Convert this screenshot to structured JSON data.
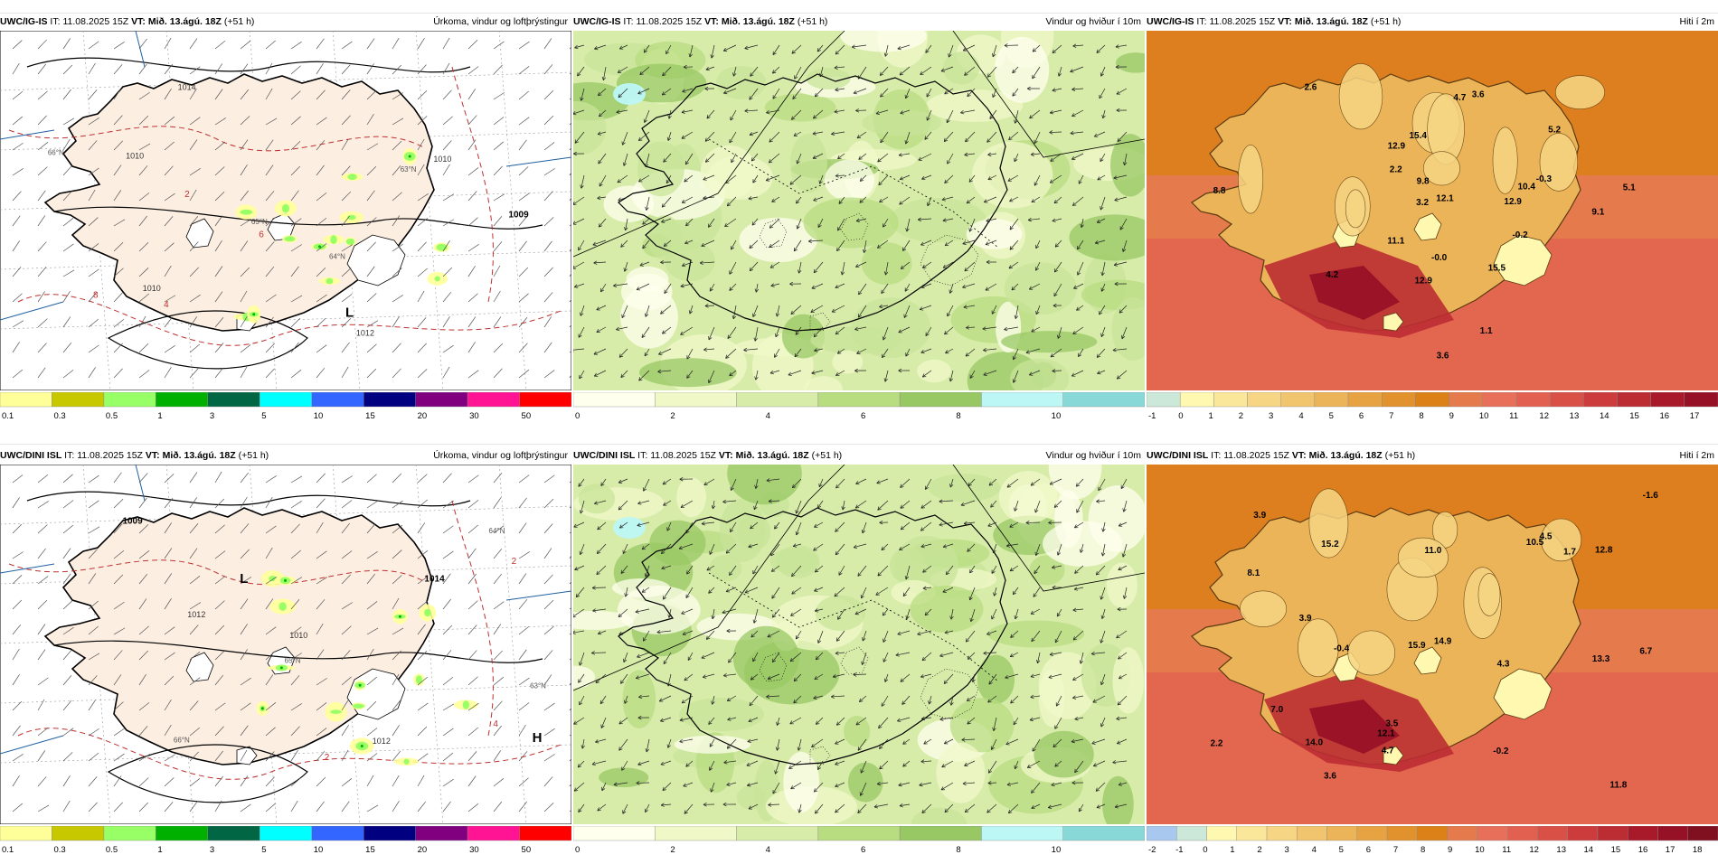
{
  "panels": [
    {
      "id": "r0c0",
      "model": "UWC/IG-IS",
      "it_label": "IT:",
      "it_value": "11.08.2025 15Z",
      "vt_label": "VT:",
      "vt_value": "Mið. 13.ágú. 18Z",
      "lead": "(+51 h)",
      "field": "Úrkoma, vindur og loftþrýstingur",
      "kind": "precip",
      "legend": {
        "colors": [
          "#ffff99",
          "#c8c800",
          "#99ff66",
          "#00b000",
          "#006644",
          "#00ffff",
          "#3366ff",
          "#000080",
          "#800080",
          "#ff1493",
          "#ff0000"
        ],
        "labels": [
          "0.1",
          "0.3",
          "0.5",
          "1",
          "3",
          "5",
          "10",
          "15",
          "20",
          "30",
          "50"
        ]
      },
      "annotations": [
        {
          "text": "1012",
          "type": "isobar"
        },
        {
          "text": "1014",
          "type": "isobar"
        },
        {
          "text": "1010",
          "type": "isobar"
        },
        {
          "text": "1010",
          "type": "isobar"
        },
        {
          "text": "1010",
          "type": "isobar"
        },
        {
          "text": "L",
          "type": "low"
        },
        {
          "text": "1009",
          "type": "low-value"
        },
        {
          "text": "2",
          "type": "isotherm"
        },
        {
          "text": "6",
          "type": "isotherm"
        },
        {
          "text": "4",
          "type": "isotherm"
        },
        {
          "text": "8",
          "type": "isotherm"
        },
        {
          "text": "66°N",
          "type": "grid"
        },
        {
          "text": "65°N",
          "type": "grid"
        },
        {
          "text": "64°N",
          "type": "grid"
        },
        {
          "text": "63°N",
          "type": "grid"
        }
      ]
    },
    {
      "id": "r0c1",
      "model": "UWC/IG-IS",
      "it_label": "IT:",
      "it_value": "11.08.2025 15Z",
      "vt_label": "VT:",
      "vt_value": "Mið. 13.ágú. 18Z",
      "lead": "(+51 h)",
      "field": "Vindur og hviður í 10m",
      "kind": "wind",
      "legend": {
        "colors": [
          "#ffffee",
          "#f0f8c8",
          "#d8ecaa",
          "#b8dc80",
          "#98c864",
          "#bdf7f5",
          "#88d8d8"
        ],
        "labels": [
          "0",
          "2",
          "4",
          "6",
          "8",
          "10"
        ]
      },
      "annotations": []
    },
    {
      "id": "r0c2",
      "model": "UWC/IG-IS",
      "it_label": "IT:",
      "it_value": "11.08.2025 15Z",
      "vt_label": "VT:",
      "vt_value": "Mið. 13.ágú. 18Z",
      "lead": "(+51 h)",
      "field": "Hiti í 2m",
      "kind": "temp",
      "legend": {
        "colors": [
          "#cce8d8",
          "#fff8b0",
          "#fbe79a",
          "#f6d684",
          "#f1c56e",
          "#ecb458",
          "#e7a342",
          "#e2922c",
          "#dc8018",
          "#e57a4c",
          "#e8705a",
          "#e26050",
          "#d85046",
          "#cc3c3c",
          "#bb2c33",
          "#a81a2a",
          "#961026"
        ],
        "labels": [
          "-1",
          "0",
          "1",
          "2",
          "3",
          "4",
          "5",
          "6",
          "7",
          "8",
          "9",
          "10",
          "11",
          "12",
          "13",
          "14",
          "15",
          "16",
          "17"
        ]
      },
      "annotations": [
        {
          "text": "9.1",
          "type": "value"
        },
        {
          "text": "1.1",
          "type": "value"
        },
        {
          "text": "12.1",
          "type": "value"
        },
        {
          "text": "4.2",
          "type": "value"
        },
        {
          "text": "5.1",
          "type": "value"
        },
        {
          "text": "3.2",
          "type": "value"
        },
        {
          "text": "5.2",
          "type": "value"
        },
        {
          "text": "12.9",
          "type": "value"
        },
        {
          "text": "2.2",
          "type": "value"
        },
        {
          "text": "10.4",
          "type": "value"
        },
        {
          "text": "4.7",
          "type": "value"
        },
        {
          "text": "12.9",
          "type": "value"
        },
        {
          "text": "11.1",
          "type": "value"
        },
        {
          "text": "3.6",
          "type": "value"
        },
        {
          "text": "3.6",
          "type": "value"
        },
        {
          "text": "2.6",
          "type": "value"
        },
        {
          "text": "-0.2",
          "type": "value"
        },
        {
          "text": "-0.0",
          "type": "value"
        },
        {
          "text": "15.4",
          "type": "value"
        },
        {
          "text": "12.9",
          "type": "value"
        },
        {
          "text": "-0.3",
          "type": "value"
        },
        {
          "text": "9.8",
          "type": "value"
        },
        {
          "text": "8.8",
          "type": "value"
        },
        {
          "text": "15.5",
          "type": "value"
        }
      ]
    },
    {
      "id": "r1c0",
      "model": "UWC/DINI ISL",
      "it_label": "IT:",
      "it_value": "11.08.2025 15Z",
      "vt_label": "VT:",
      "vt_value": "Mið. 13.ágú. 18Z",
      "lead": "(+51 h)",
      "field": "Úrkoma, vindur og loftþrýstingur",
      "kind": "precip",
      "legend": {
        "colors": [
          "#ffff99",
          "#c8c800",
          "#99ff66",
          "#00b000",
          "#006644",
          "#00ffff",
          "#3366ff",
          "#000080",
          "#800080",
          "#ff1493",
          "#ff0000"
        ],
        "labels": [
          "0.1",
          "0.3",
          "0.5",
          "1",
          "3",
          "5",
          "10",
          "15",
          "20",
          "30",
          "50"
        ]
      },
      "annotations": [
        {
          "text": "H",
          "type": "high"
        },
        {
          "text": "1014",
          "type": "high-value"
        },
        {
          "text": "1012",
          "type": "isobar"
        },
        {
          "text": "1012",
          "type": "isobar"
        },
        {
          "text": "1010",
          "type": "isobar"
        },
        {
          "text": "L",
          "type": "low"
        },
        {
          "text": "1009",
          "type": "low-value"
        },
        {
          "text": "2",
          "type": "isotherm"
        },
        {
          "text": "4",
          "type": "isotherm"
        },
        {
          "text": "2",
          "type": "isotherm"
        },
        {
          "text": "66°N",
          "type": "grid"
        },
        {
          "text": "65°N",
          "type": "grid"
        },
        {
          "text": "64°N",
          "type": "grid"
        },
        {
          "text": "63°N",
          "type": "grid"
        }
      ]
    },
    {
      "id": "r1c1",
      "model": "UWC/DINI ISL",
      "it_label": "IT:",
      "it_value": "11.08.2025 15Z",
      "vt_label": "VT:",
      "vt_value": "Mið. 13.ágú. 18Z",
      "lead": "(+51 h)",
      "field": "Vindur og hviður í 10m",
      "kind": "wind",
      "legend": {
        "colors": [
          "#ffffee",
          "#f0f8c8",
          "#d8ecaa",
          "#b8dc80",
          "#98c864",
          "#bdf7f5",
          "#88d8d8"
        ],
        "labels": [
          "0",
          "2",
          "4",
          "6",
          "8",
          "10"
        ]
      },
      "annotations": []
    },
    {
      "id": "r1c2",
      "model": "UWC/DINI ISL",
      "it_label": "IT:",
      "it_value": "11.08.2025 15Z",
      "vt_label": "VT:",
      "vt_value": "Mið. 13.ágú. 18Z",
      "lead": "(+51 h)",
      "field": "Hiti í 2m",
      "kind": "temp",
      "legend": {
        "colors": [
          "#a8c8f0",
          "#cce8d8",
          "#fff8b0",
          "#fbe79a",
          "#f6d684",
          "#f1c56e",
          "#ecb458",
          "#e7a342",
          "#e2922c",
          "#dc8018",
          "#e57a4c",
          "#e8705a",
          "#e26050",
          "#d85046",
          "#cc3c3c",
          "#bb2c33",
          "#a81a2a",
          "#961026",
          "#801020"
        ],
        "labels": [
          "-2",
          "-1",
          "0",
          "1",
          "2",
          "3",
          "4",
          "5",
          "6",
          "7",
          "8",
          "9",
          "10",
          "11",
          "12",
          "13",
          "14",
          "15",
          "16",
          "17",
          "18"
        ]
      },
      "annotations": [
        {
          "text": "3.9",
          "type": "value"
        },
        {
          "text": "3.9",
          "type": "value"
        },
        {
          "text": "6.7",
          "type": "value"
        },
        {
          "text": "12.1",
          "type": "value"
        },
        {
          "text": "4.3",
          "type": "value"
        },
        {
          "text": "3.6",
          "type": "value"
        },
        {
          "text": "2.2",
          "type": "value"
        },
        {
          "text": "4.5",
          "type": "value"
        },
        {
          "text": "13.3",
          "type": "value"
        },
        {
          "text": "4.7",
          "type": "value"
        },
        {
          "text": "10.5",
          "type": "value"
        },
        {
          "text": "7.0",
          "type": "value"
        },
        {
          "text": "12.8",
          "type": "value"
        },
        {
          "text": "11.8",
          "type": "value"
        },
        {
          "text": "3.5",
          "type": "value"
        },
        {
          "text": "1.7",
          "type": "value"
        },
        {
          "text": "-0.2",
          "type": "value"
        },
        {
          "text": "-1.6",
          "type": "value"
        },
        {
          "text": "11.0",
          "type": "value"
        },
        {
          "text": "15.2",
          "type": "value"
        },
        {
          "text": "14.0",
          "type": "value"
        },
        {
          "text": "-0.4",
          "type": "value"
        },
        {
          "text": "8.1",
          "type": "value"
        },
        {
          "text": "15.9",
          "type": "value"
        },
        {
          "text": "14.9",
          "type": "value"
        }
      ]
    }
  ]
}
